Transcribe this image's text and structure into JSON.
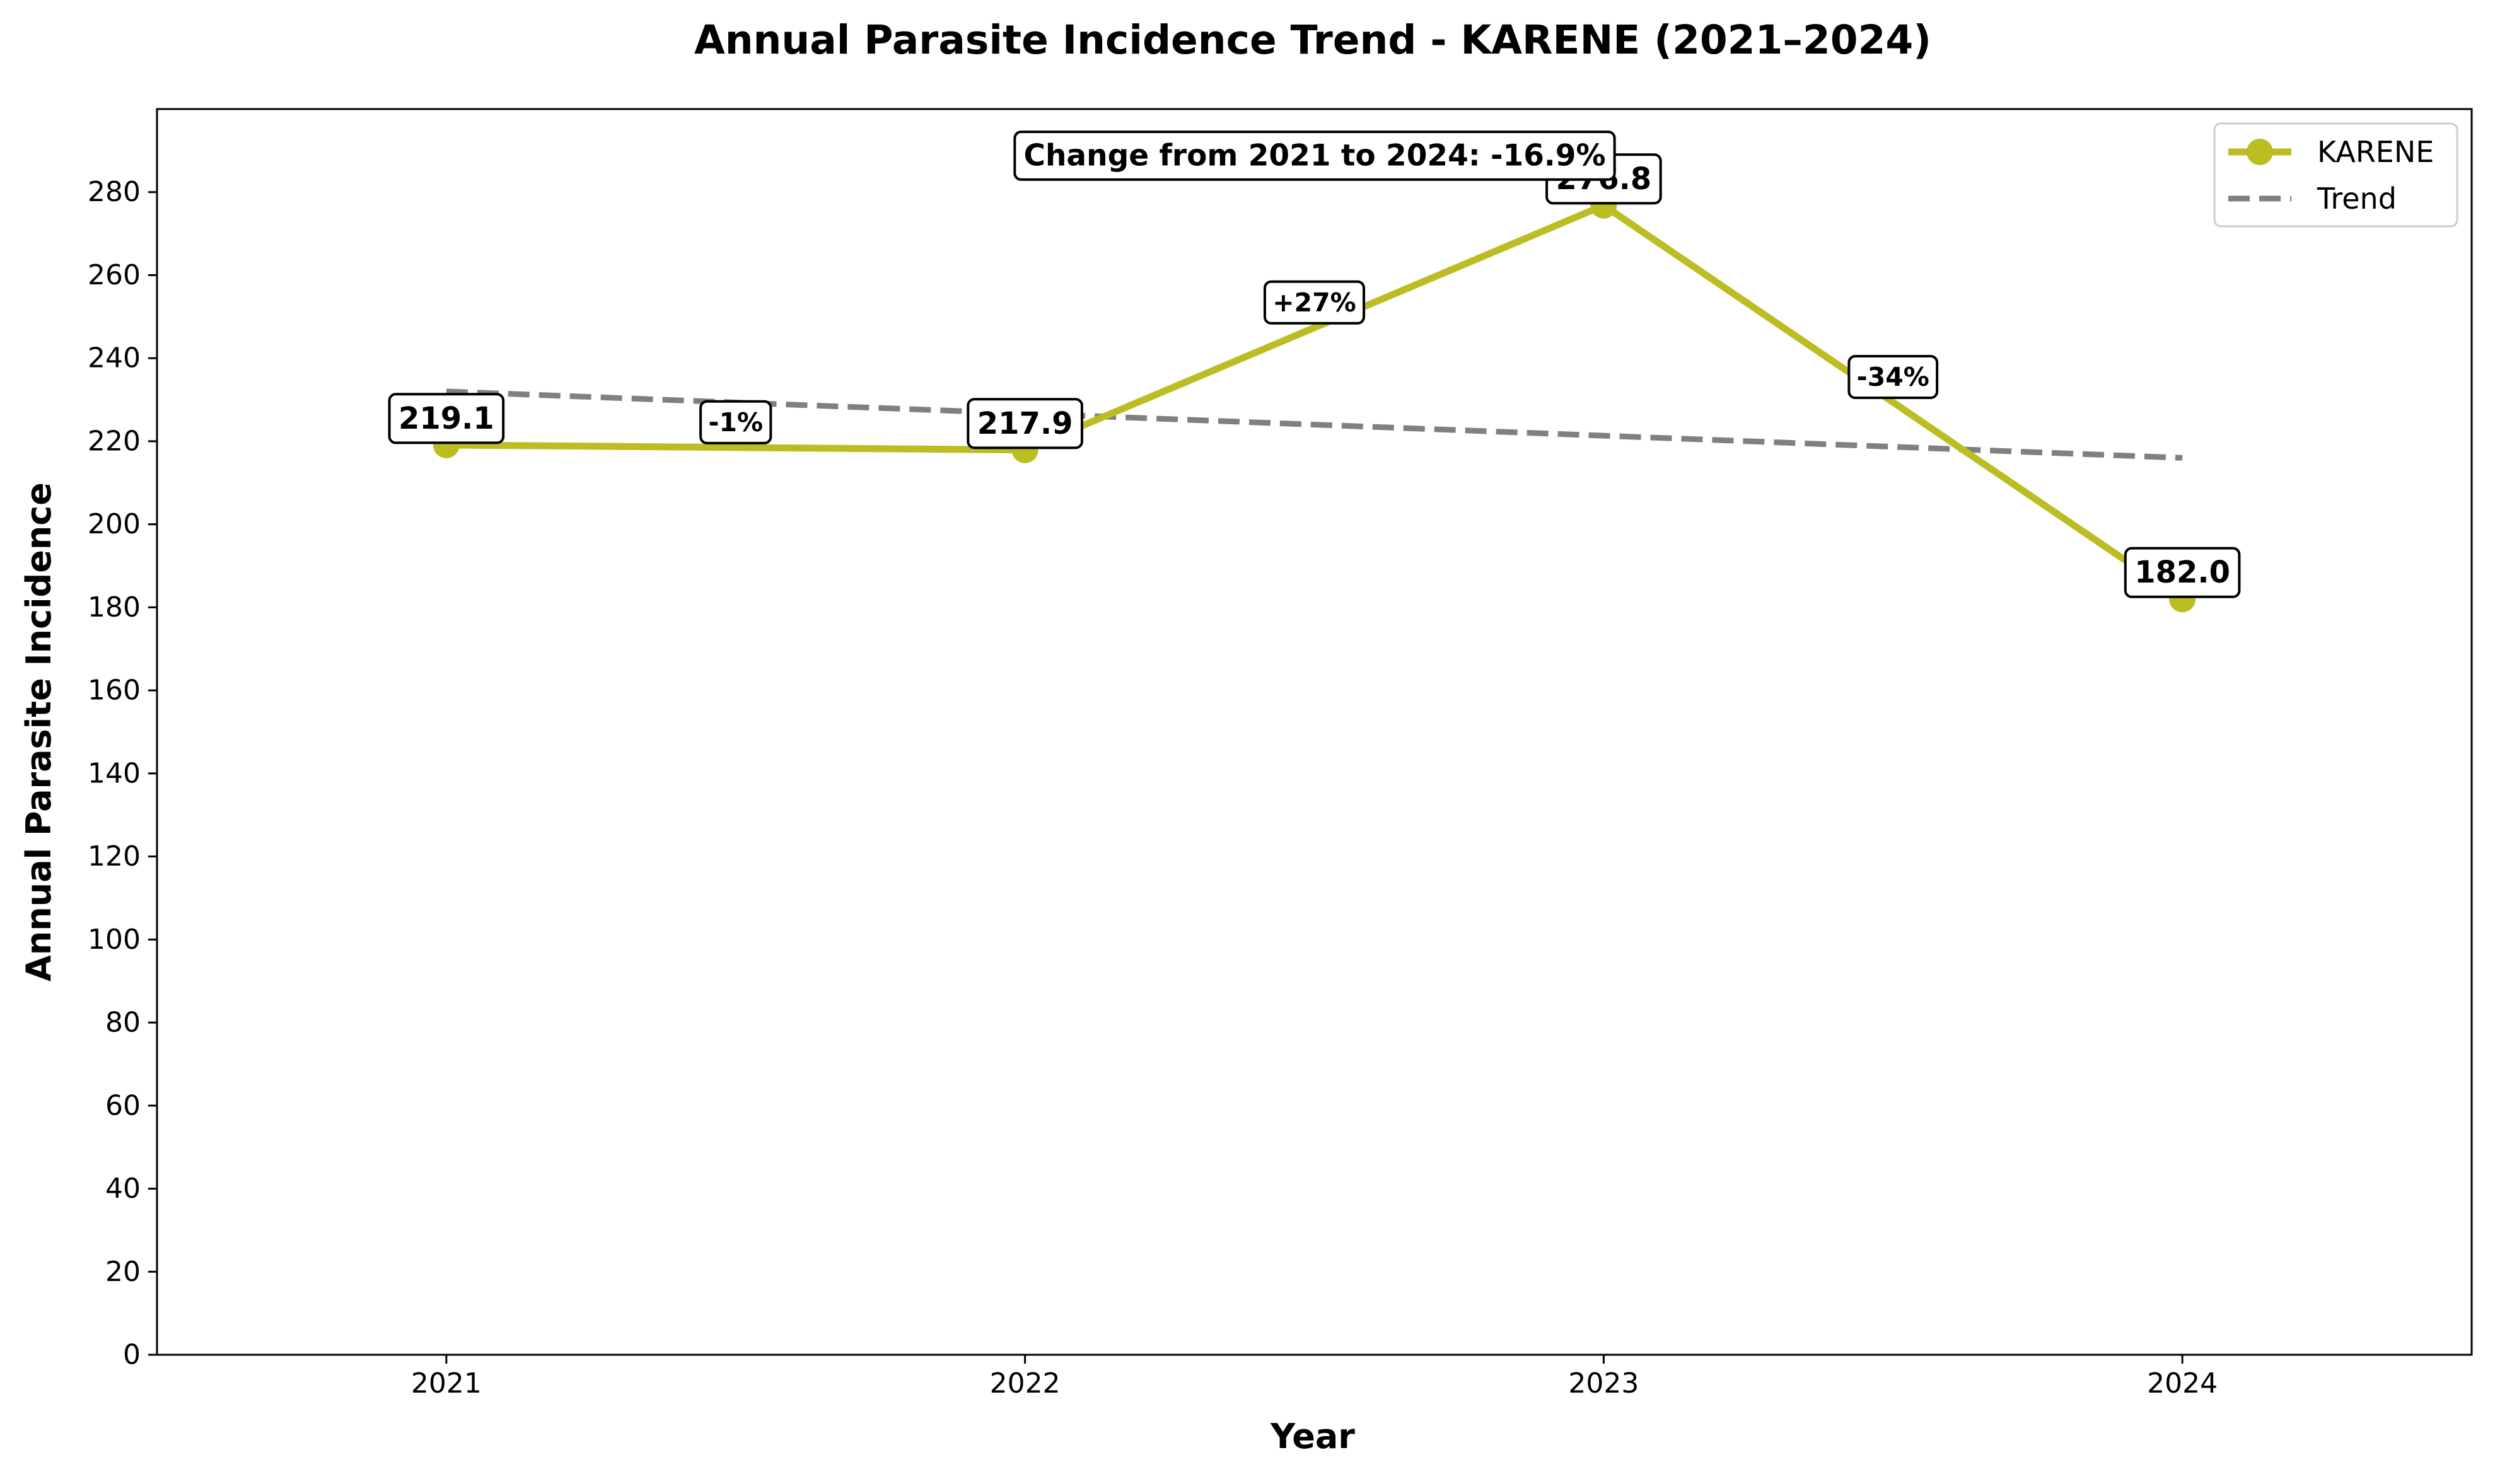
{
  "chart_data": {
    "type": "line",
    "title": "Annual Parasite Incidence Trend - KARENE (2021–2024)",
    "xlabel": "Year",
    "ylabel": "Annual Parasite Incidence",
    "x": [
      2021,
      2022,
      2023,
      2024
    ],
    "x_tick_labels": [
      "2021",
      "2022",
      "2023",
      "2024"
    ],
    "xlim": [
      2020.5,
      2024.5
    ],
    "ylim": [
      0,
      300
    ],
    "y_ticks": [
      0,
      20,
      40,
      60,
      80,
      100,
      120,
      140,
      160,
      180,
      200,
      220,
      240,
      260,
      280
    ],
    "grid": false,
    "legend_position": "top-right",
    "series": [
      {
        "name": "KARENE",
        "values": [
          219.1,
          217.9,
          276.8,
          182.0
        ],
        "value_labels": [
          "219.1",
          "217.9",
          "276.8",
          "182.0"
        ],
        "color": "#bcbd22",
        "style": "solid",
        "marker": "circle"
      },
      {
        "name": "Trend",
        "x": [
          2021,
          2024
        ],
        "values": [
          232.0,
          216.0
        ],
        "color": "#808080",
        "style": "dashed"
      }
    ],
    "segment_changes": [
      {
        "from": 2021,
        "to": 2022,
        "label": "-1%"
      },
      {
        "from": 2022,
        "to": 2023,
        "label": "+27%"
      },
      {
        "from": 2023,
        "to": 2024,
        "label": "-34%"
      }
    ],
    "annotation": "Change from 2021 to 2024: -16.9%"
  }
}
